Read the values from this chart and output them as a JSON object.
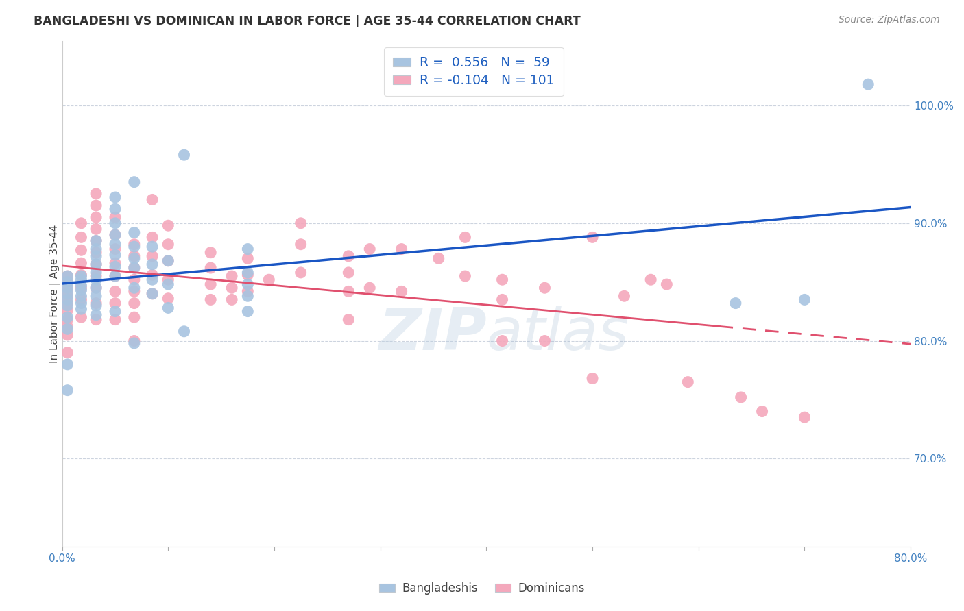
{
  "title": "BANGLADESHI VS DOMINICAN IN LABOR FORCE | AGE 35-44 CORRELATION CHART",
  "source": "Source: ZipAtlas.com",
  "ylabel": "In Labor Force | Age 35-44",
  "xmin": 0.0,
  "xmax": 0.8,
  "ymin": 0.625,
  "ymax": 1.055,
  "yticks": [
    0.7,
    0.8,
    0.9,
    1.0
  ],
  "ytick_labels": [
    "70.0%",
    "80.0%",
    "90.0%",
    "100.0%"
  ],
  "xticks": [
    0.0,
    0.1,
    0.2,
    0.3,
    0.4,
    0.5,
    0.6,
    0.7,
    0.8
  ],
  "xtick_labels": [
    "0.0%",
    "",
    "",
    "",
    "",
    "",
    "",
    "",
    "80.0%"
  ],
  "blue_R": 0.556,
  "blue_N": 59,
  "pink_R": -0.104,
  "pink_N": 101,
  "blue_color": "#a8c4e0",
  "pink_color": "#f4a8bc",
  "blue_line_color": "#1a56c4",
  "pink_line_color": "#e0506e",
  "watermark": "ZIPatlas",
  "legend_label_blue": "Bangladeshis",
  "legend_label_pink": "Dominicans",
  "blue_scatter_x": [
    0.005,
    0.005,
    0.005,
    0.005,
    0.005,
    0.005,
    0.005,
    0.005,
    0.005,
    0.005,
    0.018,
    0.018,
    0.018,
    0.018,
    0.018,
    0.018,
    0.018,
    0.032,
    0.032,
    0.032,
    0.032,
    0.032,
    0.032,
    0.032,
    0.032,
    0.032,
    0.032,
    0.05,
    0.05,
    0.05,
    0.05,
    0.05,
    0.05,
    0.05,
    0.05,
    0.05,
    0.068,
    0.068,
    0.068,
    0.068,
    0.068,
    0.068,
    0.068,
    0.085,
    0.085,
    0.085,
    0.085,
    0.1,
    0.1,
    0.1,
    0.115,
    0.115,
    0.175,
    0.175,
    0.175,
    0.175,
    0.175,
    0.635,
    0.7,
    0.76
  ],
  "blue_scatter_y": [
    0.855,
    0.85,
    0.845,
    0.84,
    0.835,
    0.83,
    0.82,
    0.81,
    0.78,
    0.758,
    0.855,
    0.852,
    0.847,
    0.843,
    0.838,
    0.832,
    0.827,
    0.885,
    0.878,
    0.872,
    0.865,
    0.858,
    0.852,
    0.845,
    0.838,
    0.83,
    0.822,
    0.922,
    0.912,
    0.9,
    0.89,
    0.882,
    0.873,
    0.863,
    0.855,
    0.825,
    0.935,
    0.892,
    0.88,
    0.87,
    0.862,
    0.845,
    0.798,
    0.88,
    0.865,
    0.852,
    0.84,
    0.868,
    0.848,
    0.828,
    0.958,
    0.808,
    0.878,
    0.858,
    0.848,
    0.838,
    0.825,
    0.832,
    0.835,
    1.018
  ],
  "pink_scatter_x": [
    0.005,
    0.005,
    0.005,
    0.005,
    0.005,
    0.005,
    0.005,
    0.005,
    0.005,
    0.005,
    0.005,
    0.018,
    0.018,
    0.018,
    0.018,
    0.018,
    0.018,
    0.018,
    0.018,
    0.032,
    0.032,
    0.032,
    0.032,
    0.032,
    0.032,
    0.032,
    0.032,
    0.032,
    0.032,
    0.032,
    0.05,
    0.05,
    0.05,
    0.05,
    0.05,
    0.05,
    0.05,
    0.05,
    0.068,
    0.068,
    0.068,
    0.068,
    0.068,
    0.068,
    0.068,
    0.068,
    0.085,
    0.085,
    0.085,
    0.085,
    0.085,
    0.1,
    0.1,
    0.1,
    0.1,
    0.1,
    0.14,
    0.14,
    0.14,
    0.14,
    0.16,
    0.16,
    0.16,
    0.175,
    0.175,
    0.175,
    0.195,
    0.225,
    0.225,
    0.225,
    0.27,
    0.27,
    0.27,
    0.27,
    0.29,
    0.29,
    0.32,
    0.32,
    0.355,
    0.38,
    0.38,
    0.415,
    0.415,
    0.415,
    0.455,
    0.455,
    0.5,
    0.5,
    0.53,
    0.555,
    0.57,
    0.59,
    0.64,
    0.66,
    0.7
  ],
  "pink_scatter_y": [
    0.855,
    0.852,
    0.847,
    0.843,
    0.838,
    0.832,
    0.826,
    0.818,
    0.812,
    0.805,
    0.79,
    0.9,
    0.888,
    0.877,
    0.866,
    0.856,
    0.845,
    0.835,
    0.82,
    0.925,
    0.915,
    0.905,
    0.895,
    0.885,
    0.875,
    0.865,
    0.855,
    0.845,
    0.832,
    0.818,
    0.905,
    0.89,
    0.878,
    0.866,
    0.855,
    0.842,
    0.832,
    0.818,
    0.882,
    0.872,
    0.862,
    0.852,
    0.842,
    0.832,
    0.82,
    0.8,
    0.92,
    0.888,
    0.872,
    0.856,
    0.84,
    0.898,
    0.882,
    0.868,
    0.852,
    0.836,
    0.875,
    0.862,
    0.848,
    0.835,
    0.855,
    0.845,
    0.835,
    0.87,
    0.856,
    0.842,
    0.852,
    0.9,
    0.882,
    0.858,
    0.872,
    0.858,
    0.842,
    0.818,
    0.878,
    0.845,
    0.878,
    0.842,
    0.87,
    0.888,
    0.855,
    0.852,
    0.835,
    0.8,
    0.845,
    0.8,
    0.888,
    0.768,
    0.838,
    0.852,
    0.848,
    0.765,
    0.752,
    0.74,
    0.735
  ]
}
